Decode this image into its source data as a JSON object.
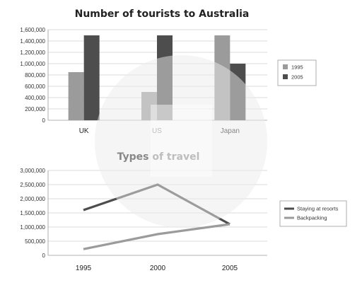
{
  "chart_data": [
    {
      "type": "bar",
      "title": "Number of tourists to Australia",
      "categories": [
        "UK",
        "US",
        "Japan"
      ],
      "series": [
        {
          "name": "1995",
          "values": [
            850000,
            500000,
            1500000
          ],
          "color": "#9b9b9b"
        },
        {
          "name": "2005",
          "values": [
            1500000,
            1500000,
            1000000
          ],
          "color": "#4d4d4d"
        }
      ],
      "ylim": [
        0,
        1600000
      ],
      "yticks": [
        0,
        200000,
        400000,
        600000,
        800000,
        1000000,
        1200000,
        1400000,
        1600000
      ],
      "ytick_labels": [
        "0",
        "200,000",
        "400,000",
        "600,000",
        "800,000",
        "1,000,000",
        "1,200,000",
        "1,400,000",
        "1,600,000"
      ],
      "grid": true,
      "legend_position": "right"
    },
    {
      "type": "line",
      "title": "Types of travel",
      "x": [
        "1995",
        "2000",
        "2005"
      ],
      "series": [
        {
          "name": "Staying at resorts",
          "values": [
            1600000,
            2500000,
            1100000
          ],
          "color": "#4d4d4d"
        },
        {
          "name": "Backpacking",
          "values": [
            220000,
            750000,
            1100000
          ],
          "color": "#9b9b9b"
        }
      ],
      "ylim": [
        0,
        3000000
      ],
      "yticks": [
        0,
        500000,
        1000000,
        1500000,
        2000000,
        2500000,
        3000000
      ],
      "ytick_labels": [
        "0",
        "500,000",
        "1,000,000",
        "1,500,000",
        "2,000,000",
        "2,500,000",
        "3,000,000"
      ],
      "grid": true,
      "legend_position": "right"
    }
  ]
}
